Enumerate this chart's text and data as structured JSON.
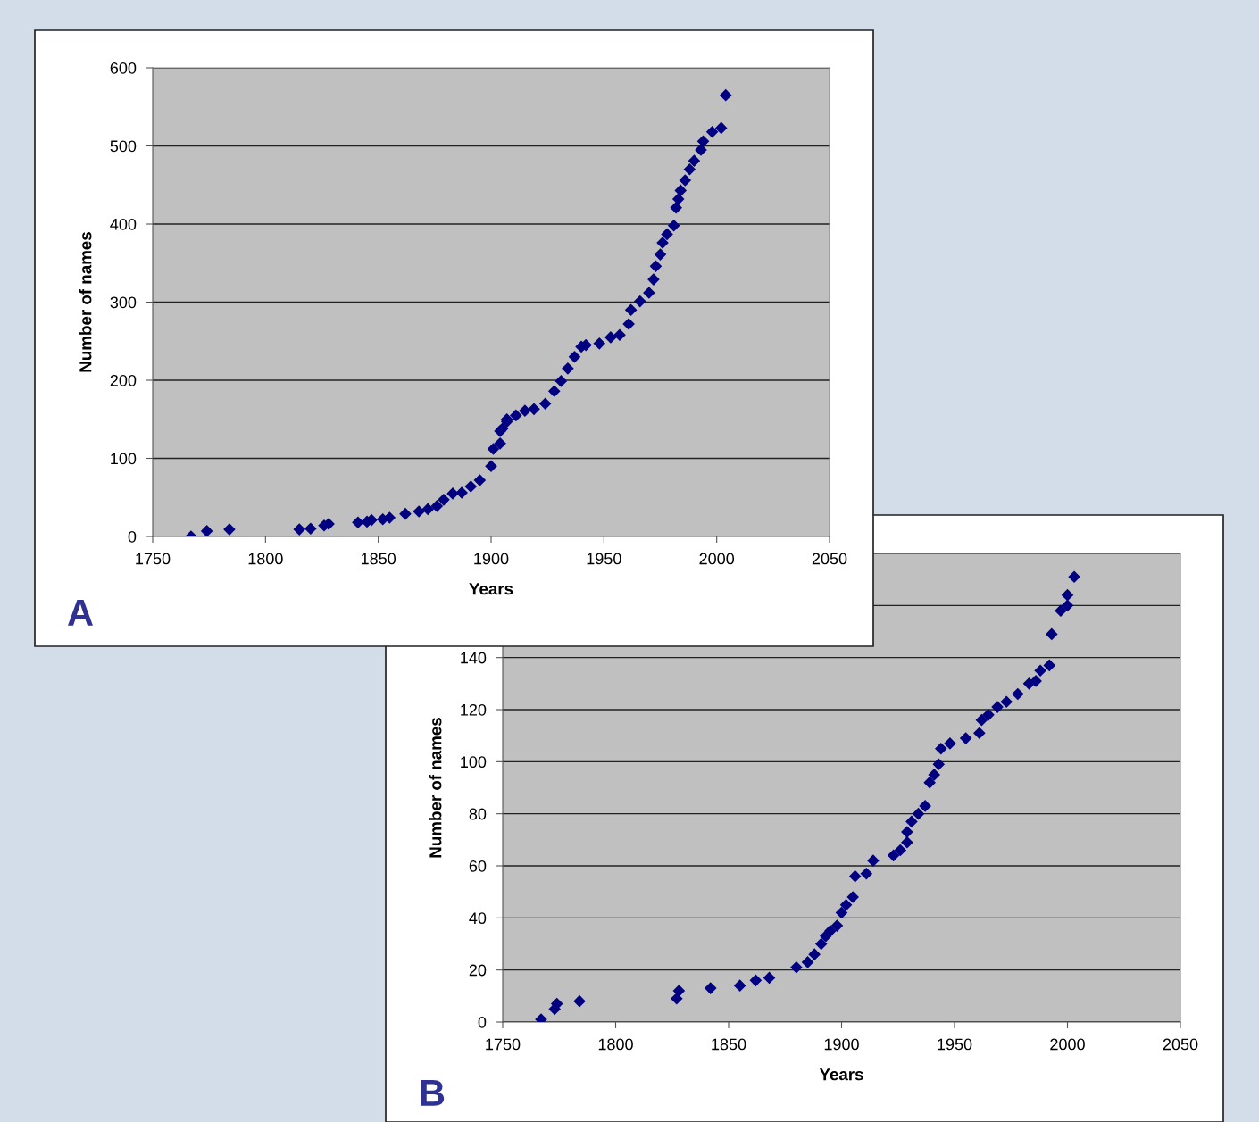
{
  "chart_data": [
    {
      "type": "scatter",
      "xlabel": "Years",
      "ylabel": "Number of names",
      "annotations": [
        "A"
      ],
      "xlim": [
        1750,
        2050
      ],
      "xticks": [
        1750,
        1800,
        1850,
        1900,
        1950,
        2000,
        2050
      ],
      "ylim": [
        0,
        600
      ],
      "yticks": [
        0,
        100,
        200,
        300,
        400,
        500,
        600
      ],
      "grid": "y",
      "marker": "diamond",
      "x": [
        1767,
        1774,
        1784,
        1815,
        1820,
        1826,
        1828,
        1841,
        1845,
        1847,
        1852,
        1855,
        1862,
        1868,
        1872,
        1876,
        1879,
        1883,
        1887,
        1891,
        1895,
        1900,
        1901,
        1904,
        1904,
        1905,
        1907,
        1907,
        1911,
        1915,
        1919,
        1924,
        1928,
        1931,
        1934,
        1937,
        1940,
        1942,
        1948,
        1953,
        1957,
        1961,
        1962,
        1966,
        1970,
        1972,
        1973,
        1975,
        1976,
        1978,
        1981,
        1982,
        1983,
        1984,
        1986,
        1988,
        1990,
        1993,
        1994,
        1998,
        2002,
        2004
      ],
      "series": [
        {
          "color": "#000080",
          "values": [
            0,
            7,
            9,
            9,
            10,
            14,
            16,
            18,
            19,
            21,
            22,
            24,
            29,
            32,
            35,
            39,
            47,
            55,
            56,
            64,
            72,
            90,
            112,
            119,
            135,
            138,
            147,
            150,
            155,
            161,
            163,
            170,
            186,
            199,
            215,
            230,
            243,
            245,
            247,
            255,
            258,
            272,
            290,
            301,
            312,
            329,
            346,
            361,
            376,
            387,
            398,
            421,
            432,
            443,
            456,
            470,
            481,
            495,
            506,
            518,
            523,
            565
          ]
        }
      ]
    },
    {
      "type": "scatter",
      "xlabel": "Years",
      "ylabel": "Number of names",
      "annotations": [
        "B"
      ],
      "xlim": [
        1750,
        2050
      ],
      "xticks": [
        1750,
        1800,
        1850,
        1900,
        1950,
        2000,
        2050
      ],
      "ylim": [
        0,
        180
      ],
      "yticks": [
        0,
        20,
        40,
        60,
        80,
        100,
        120,
        140,
        {
          "value": 160,
          "label": null
        },
        {
          "value": 180,
          "label": null
        }
      ],
      "grid": "y",
      "marker": "diamond",
      "x": [
        1767,
        1773,
        1774,
        1784,
        1827,
        1828,
        1842,
        1855,
        1862,
        1868,
        1880,
        1885,
        1888,
        1891,
        1893,
        1895,
        1898,
        1900,
        1902,
        1905,
        1906,
        1911,
        1914,
        1923,
        1926,
        1929,
        1929,
        1931,
        1934,
        1937,
        1939,
        1941,
        1943,
        1944,
        1948,
        1955,
        1961,
        1962,
        1965,
        1969,
        1973,
        1978,
        1983,
        1986,
        1988,
        1992,
        1993,
        1997,
        2000,
        2000,
        2003
      ],
      "series": [
        {
          "color": "#000080",
          "values": [
            1,
            5,
            7,
            8,
            9,
            12,
            13,
            14,
            16,
            17,
            21,
            23,
            26,
            30,
            33,
            35,
            37,
            42,
            45,
            48,
            56,
            57,
            62,
            64,
            66,
            69,
            73,
            77,
            80,
            83,
            92,
            95,
            99,
            105,
            107,
            109,
            111,
            116,
            118,
            121,
            123,
            126,
            130,
            131,
            135,
            137,
            149,
            158,
            160,
            164,
            171
          ]
        }
      ]
    }
  ]
}
